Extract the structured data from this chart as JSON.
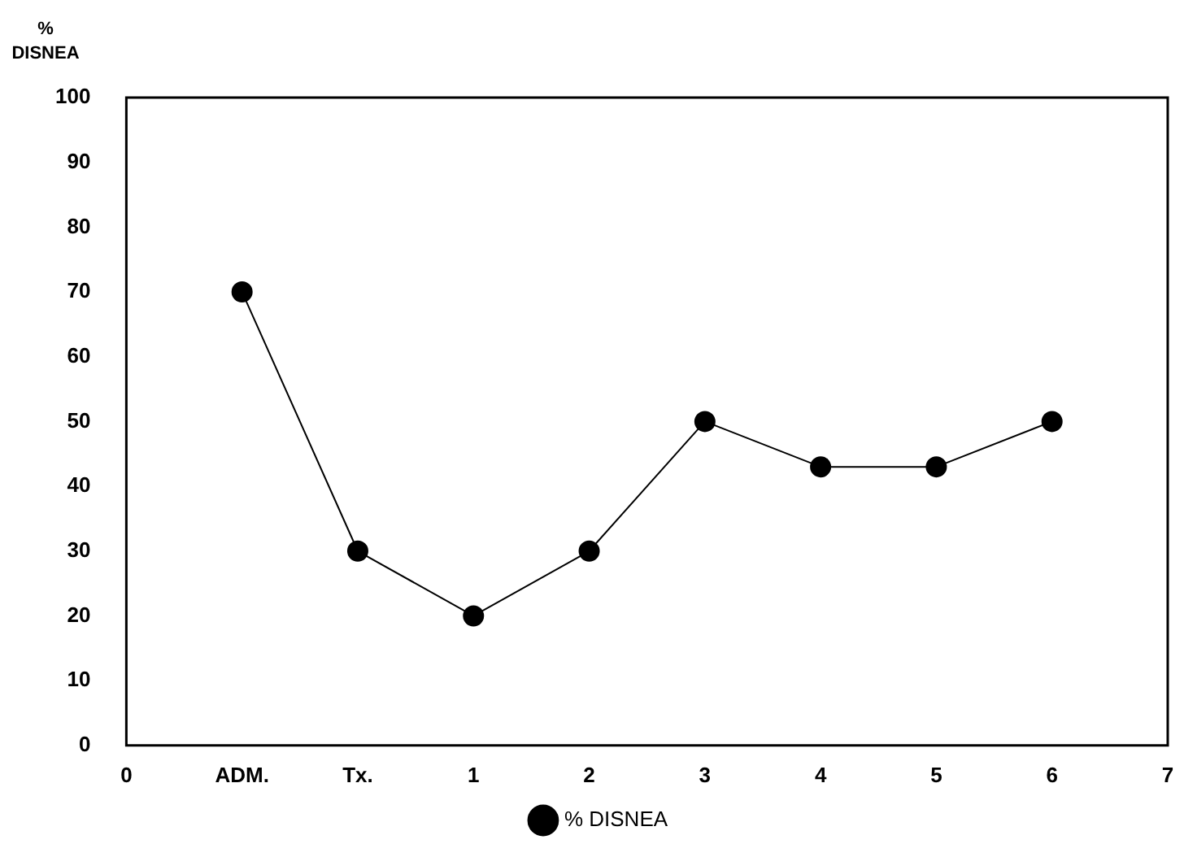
{
  "chart_data": {
    "type": "line",
    "ylabel": "% DISNEA",
    "categories": [
      "0",
      "ADM.",
      "Tx.",
      "1",
      "2",
      "3",
      "4",
      "5",
      "6",
      "7"
    ],
    "series": [
      {
        "name": "% DISNEA",
        "color": "#000000",
        "values": [
          null,
          70,
          30,
          20,
          30,
          50,
          43,
          43,
          50,
          null
        ]
      }
    ],
    "ylim": [
      0,
      100
    ],
    "yticks": [
      0,
      10,
      20,
      30,
      40,
      50,
      60,
      70,
      80,
      90,
      100
    ],
    "grid": false,
    "legend": "bottom",
    "marker": "circle",
    "line_style": "solid"
  }
}
